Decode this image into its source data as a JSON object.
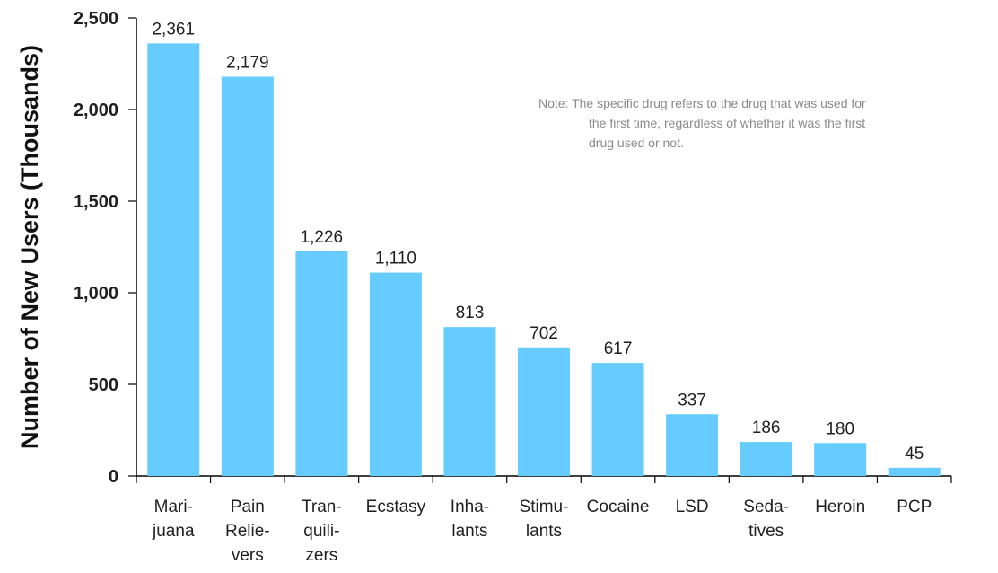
{
  "chart_data": {
    "type": "bar",
    "title": "",
    "xlabel": "",
    "ylabel": "Number of New Users (Thousands)",
    "ylim": [
      0,
      2500
    ],
    "yticks": [
      0,
      500,
      1000,
      1500,
      2000,
      2500
    ],
    "ytick_labels": [
      "0",
      "500",
      "1,000",
      "1,500",
      "2,000",
      "2,500"
    ],
    "grid": false,
    "bar_color": "#66ccff",
    "categories": [
      [
        "Mari-",
        "juana"
      ],
      [
        "Pain",
        "Relie-",
        "vers"
      ],
      [
        "Tran-",
        "quili-",
        "zers"
      ],
      [
        "Ecstasy"
      ],
      [
        "Inha-",
        "lants"
      ],
      [
        "Stimu-",
        "lants"
      ],
      [
        "Cocaine"
      ],
      [
        "LSD"
      ],
      [
        "Seda-",
        "tives"
      ],
      [
        "Heroin"
      ],
      [
        "PCP"
      ]
    ],
    "values": [
      2361,
      2179,
      1226,
      1110,
      813,
      702,
      617,
      337,
      186,
      180,
      45
    ],
    "value_labels": [
      "2,361",
      "2,179",
      "1,226",
      "1,110",
      "813",
      "702",
      "617",
      "337",
      "186",
      "180",
      "45"
    ],
    "annotations": {
      "note": [
        "Note:  The specific drug refers to the drug that was used for",
        "the first time, regardless of whether it was the first",
        "drug used or not."
      ]
    }
  }
}
